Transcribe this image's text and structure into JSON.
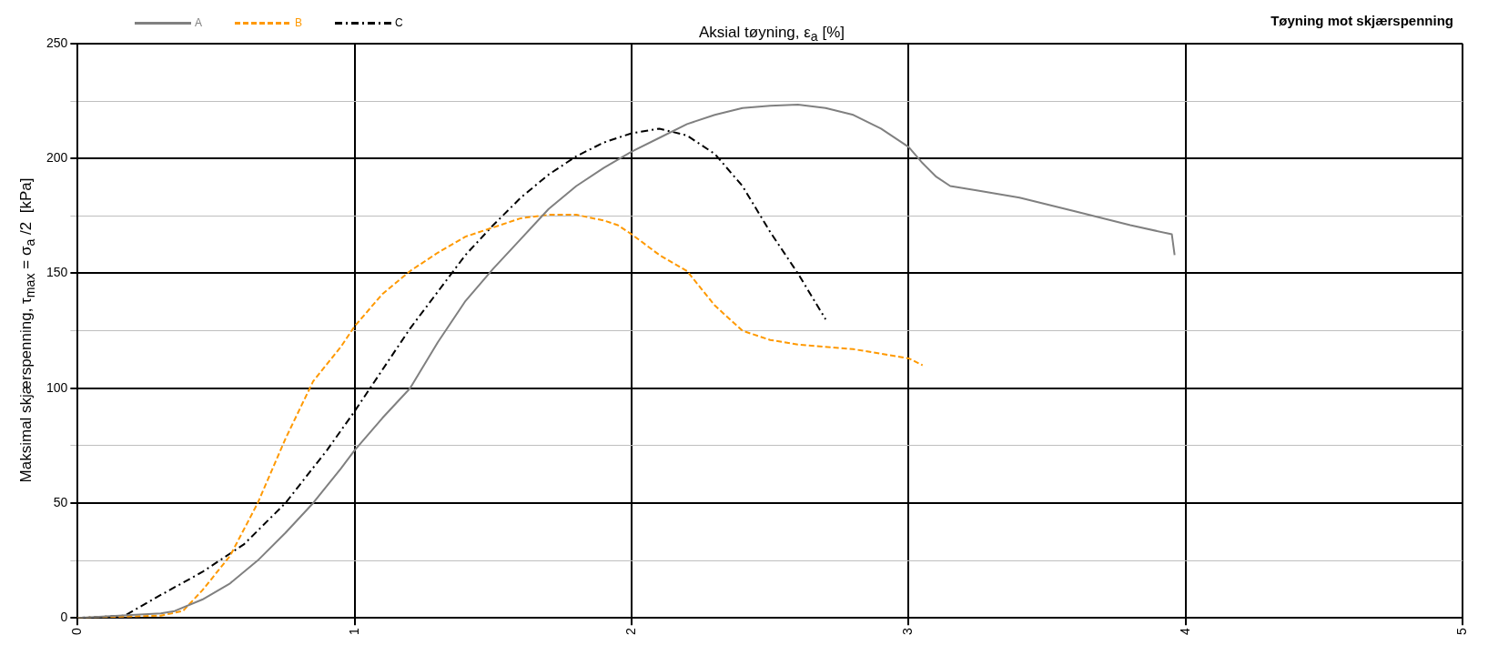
{
  "chart_data": {
    "type": "line",
    "title": "Tøyning mot skjærspenning",
    "xlabel": "Aksial tøyning, ε$_{a}$ [%]",
    "ylabel": "Maksimal skjærspenning, τ$_{max}$ = σ$_{a}$ /2  [kPa]",
    "xlim": [
      0,
      5
    ],
    "xticks": [
      0,
      1,
      2,
      3,
      4,
      5
    ],
    "ylim": [
      0,
      250
    ],
    "yticks": [
      0,
      {
        "value": 25,
        "label": null
      },
      50,
      {
        "value": 75,
        "label": null
      },
      100,
      {
        "value": 125,
        "label": null
      },
      150,
      {
        "value": 175,
        "label": null
      },
      200,
      {
        "value": 225,
        "label": null
      },
      250
    ],
    "grid": true,
    "legend": "top left",
    "marker": "none",
    "series": [
      {
        "name": "A",
        "color": "#808080",
        "line_style": "solid",
        "x": [
          0,
          0.3,
          0.35,
          0.45,
          0.55,
          0.65,
          0.75,
          0.85,
          0.95,
          1.0,
          1.1,
          1.2,
          1.3,
          1.4,
          1.5,
          1.6,
          1.7,
          1.8,
          1.9,
          2.0,
          2.1,
          2.2,
          2.3,
          2.4,
          2.5,
          2.6,
          2.7,
          2.8,
          2.9,
          3.0,
          3.05,
          3.1,
          3.15,
          3.25,
          3.4,
          3.6,
          3.8,
          3.95,
          3.96
        ],
        "values": [
          0,
          2,
          3,
          8,
          15,
          25,
          37,
          50,
          65,
          73,
          87,
          100,
          120,
          138,
          152,
          165,
          178,
          188,
          196,
          203,
          209,
          215,
          219,
          222,
          223,
          223.5,
          222,
          219,
          213,
          205,
          198,
          192,
          188,
          186,
          183,
          177,
          171,
          167,
          158
        ]
      },
      {
        "name": "B",
        "color": "#ff9900",
        "line_style": "dashed",
        "x": [
          0,
          0.3,
          0.38,
          0.45,
          0.55,
          0.65,
          0.75,
          0.85,
          0.95,
          1.0,
          1.1,
          1.2,
          1.3,
          1.4,
          1.5,
          1.6,
          1.7,
          1.8,
          1.9,
          1.95,
          2.0,
          2.1,
          2.2,
          2.3,
          2.4,
          2.5,
          2.6,
          2.8,
          3.0,
          3.05
        ],
        "values": [
          0,
          1,
          3,
          12,
          27,
          50,
          78,
          103,
          118,
          127,
          141,
          151,
          159,
          166,
          170,
          174,
          175.5,
          175.5,
          173,
          171,
          167,
          158,
          151,
          136,
          125,
          121,
          119,
          117,
          113,
          110
        ]
      },
      {
        "name": "C",
        "color": "#000000",
        "line_style": "dashdot",
        "x": [
          0,
          0.17,
          0.3,
          0.45,
          0.6,
          0.75,
          0.9,
          1.0,
          1.1,
          1.2,
          1.3,
          1.4,
          1.5,
          1.6,
          1.7,
          1.8,
          1.9,
          2.0,
          2.1,
          2.2,
          2.3,
          2.4,
          2.5,
          2.6,
          2.7
        ],
        "values": [
          0,
          1,
          10,
          20,
          32,
          50,
          73,
          90,
          108,
          126,
          142,
          158,
          171,
          183,
          193,
          201,
          207,
          211,
          213,
          210,
          202,
          188,
          168,
          150,
          130
        ]
      }
    ]
  }
}
